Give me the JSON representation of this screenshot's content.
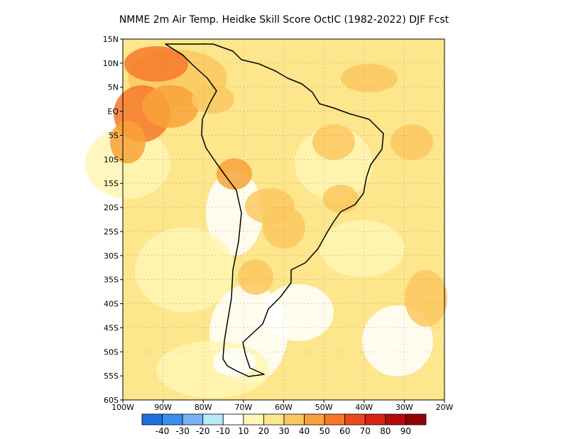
{
  "title": "NMME  2m Air Temp. Heidke Skill Score OctIC (1982-2022) DJF Fcst",
  "map": {
    "lon_range": [
      -100,
      -20
    ],
    "lat_range": [
      -60,
      15
    ],
    "lat_ticks": [
      {
        "value": 15,
        "label": "15N"
      },
      {
        "value": 10,
        "label": "10N"
      },
      {
        "value": 5,
        "label": "5N"
      },
      {
        "value": 0,
        "label": "EQ"
      },
      {
        "value": -5,
        "label": "5S"
      },
      {
        "value": -10,
        "label": "10S"
      },
      {
        "value": -15,
        "label": "15S"
      },
      {
        "value": -20,
        "label": "20S"
      },
      {
        "value": -25,
        "label": "25S"
      },
      {
        "value": -30,
        "label": "30S"
      },
      {
        "value": -35,
        "label": "35S"
      },
      {
        "value": -40,
        "label": "40S"
      },
      {
        "value": -45,
        "label": "45S"
      },
      {
        "value": -50,
        "label": "50S"
      },
      {
        "value": -55,
        "label": "55S"
      },
      {
        "value": -60,
        "label": "60S"
      }
    ],
    "lon_ticks": [
      {
        "value": -100,
        "label": "100W"
      },
      {
        "value": -90,
        "label": "90W"
      },
      {
        "value": -80,
        "label": "80W"
      },
      {
        "value": -70,
        "label": "70W"
      },
      {
        "value": -60,
        "label": "60W"
      },
      {
        "value": -50,
        "label": "50W"
      },
      {
        "value": -40,
        "label": "40W"
      },
      {
        "value": -30,
        "label": "30W"
      },
      {
        "value": -20,
        "label": "20W"
      }
    ],
    "grid": "dotted"
  },
  "colorbar": {
    "labels": [
      "-40",
      "-30",
      "-20",
      "-10",
      "10",
      "20",
      "30",
      "40",
      "50",
      "60",
      "70",
      "80",
      "90"
    ],
    "colors": [
      "#1e6fe0",
      "#3c8ef0",
      "#78b4f4",
      "#b4ecf8",
      "#ffffff",
      "#fff6b4",
      "#fde68c",
      "#fbc860",
      "#f9a23a",
      "#f6782a",
      "#ec4a1c",
      "#d82414",
      "#b40c0a",
      "#900404"
    ]
  }
}
